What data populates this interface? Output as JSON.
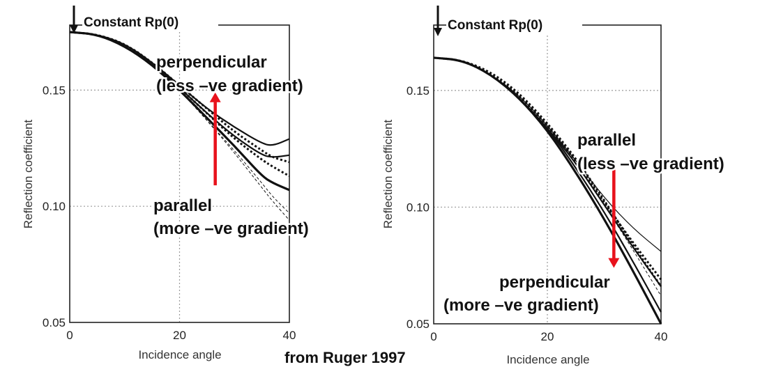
{
  "credit": "from Ruger 1997",
  "colors": {
    "arrow": "#e8121c",
    "curve": "#111111",
    "grid": "#9a9a9a"
  },
  "chart_data": [
    {
      "type": "line",
      "xlabel": "Incidence angle",
      "ylabel": "Reflection coefficient",
      "xlim": [
        0,
        40
      ],
      "ylim": [
        0.05,
        0.18
      ],
      "xticks": [
        "0",
        "20",
        "40"
      ],
      "yticks": [
        "0.05",
        "0.10",
        "0.15"
      ],
      "grid": true,
      "rp_label": "Constant Rp(0)",
      "upper_annotation": [
        "perpendicular",
        "(less –ve gradient)"
      ],
      "lower_annotation": [
        "parallel",
        "(more –ve gradient)"
      ],
      "arrow": {
        "x": 26.5,
        "from_y": 0.109,
        "to_y": 0.149,
        "direction": "up"
      },
      "series": [
        {
          "style": "solid-thick",
          "x": [
            0,
            5,
            10,
            15,
            20,
            25,
            30,
            35,
            37,
            40
          ],
          "y": [
            0.175,
            0.174,
            0.169,
            0.161,
            0.15,
            0.138,
            0.126,
            0.113,
            0.11,
            0.107
          ]
        },
        {
          "style": "solid",
          "x": [
            0,
            5,
            10,
            15,
            20,
            25,
            30,
            35,
            37,
            40
          ],
          "y": [
            0.175,
            0.174,
            0.17,
            0.162,
            0.151,
            0.14,
            0.13,
            0.122,
            0.121,
            0.122
          ]
        },
        {
          "style": "solid",
          "x": [
            0,
            5,
            10,
            15,
            20,
            25,
            30,
            35,
            37,
            40
          ],
          "y": [
            0.175,
            0.174,
            0.17,
            0.162,
            0.152,
            0.142,
            0.134,
            0.127,
            0.126,
            0.129
          ]
        },
        {
          "style": "dotted",
          "x": [
            0,
            5,
            10,
            15,
            20,
            25,
            30,
            35,
            37,
            40
          ],
          "y": [
            0.175,
            0.174,
            0.17,
            0.162,
            0.152,
            0.142,
            0.132,
            0.124,
            0.121,
            0.119
          ]
        },
        {
          "style": "dotted",
          "x": [
            0,
            5,
            10,
            15,
            20,
            25,
            30,
            35,
            37,
            40
          ],
          "y": [
            0.175,
            0.174,
            0.17,
            0.162,
            0.151,
            0.14,
            0.129,
            0.12,
            0.117,
            0.113
          ]
        },
        {
          "style": "dashed-thin",
          "x": [
            0,
            5,
            10,
            15,
            20,
            25,
            30,
            35,
            37,
            40
          ],
          "y": [
            0.175,
            0.174,
            0.169,
            0.161,
            0.15,
            0.137,
            0.123,
            0.108,
            0.102,
            0.094
          ]
        },
        {
          "style": "dashed-thin",
          "x": [
            0,
            5,
            10,
            15,
            20,
            25,
            30,
            35,
            37,
            40
          ],
          "y": [
            0.175,
            0.174,
            0.169,
            0.161,
            0.15,
            0.137,
            0.124,
            0.11,
            0.104,
            0.097
          ]
        }
      ]
    },
    {
      "type": "line",
      "xlabel": "Incidence angle",
      "ylabel": "Reflection coefficient",
      "xlim": [
        0,
        40
      ],
      "ylim": [
        0.05,
        0.18
      ],
      "xticks": [
        "0",
        "20",
        "40"
      ],
      "yticks": [
        "0.05",
        "0.10",
        "0.15"
      ],
      "grid": true,
      "rp_label": "Constant Rp(0)",
      "upper_annotation": [
        "parallel",
        "(less –ve gradient)"
      ],
      "lower_annotation": [
        "perpendicular",
        "(more –ve gradient)"
      ],
      "arrow": {
        "x": 31.7,
        "from_y": 0.116,
        "to_y": 0.074,
        "direction": "down"
      },
      "series": [
        {
          "style": "solid-thick",
          "x": [
            0,
            5,
            10,
            15,
            20,
            25,
            30,
            35,
            40
          ],
          "y": [
            0.164,
            0.163,
            0.157,
            0.147,
            0.133,
            0.115,
            0.095,
            0.073,
            0.05
          ]
        },
        {
          "style": "solid",
          "x": [
            0,
            5,
            10,
            15,
            20,
            25,
            30,
            35,
            40
          ],
          "y": [
            0.164,
            0.163,
            0.157,
            0.147,
            0.134,
            0.117,
            0.098,
            0.077,
            0.055
          ]
        },
        {
          "style": "solid",
          "x": [
            0,
            5,
            10,
            15,
            20,
            25,
            30,
            35,
            40
          ],
          "y": [
            0.164,
            0.163,
            0.157,
            0.147,
            0.134,
            0.119,
            0.101,
            0.083,
            0.066
          ]
        },
        {
          "style": "solid-thin",
          "x": [
            0,
            5,
            10,
            15,
            20,
            25,
            30,
            35,
            40
          ],
          "y": [
            0.164,
            0.163,
            0.157,
            0.148,
            0.135,
            0.12,
            0.104,
            0.091,
            0.081
          ]
        },
        {
          "style": "dotted",
          "x": [
            0,
            5,
            10,
            15,
            20,
            25,
            30,
            35,
            40
          ],
          "y": [
            0.164,
            0.163,
            0.157,
            0.148,
            0.135,
            0.12,
            0.102,
            0.085,
            0.069
          ]
        },
        {
          "style": "dotted",
          "x": [
            0,
            5,
            10,
            15,
            20,
            25,
            30,
            35,
            40
          ],
          "y": [
            0.164,
            0.163,
            0.158,
            0.149,
            0.136,
            0.121,
            0.103,
            0.084,
            0.066
          ]
        },
        {
          "style": "dashed-thin",
          "x": [
            0,
            5,
            10,
            15,
            20,
            25,
            30,
            35,
            40
          ],
          "y": [
            0.164,
            0.163,
            0.157,
            0.148,
            0.135,
            0.119,
            0.101,
            0.082,
            0.062
          ]
        }
      ]
    }
  ]
}
